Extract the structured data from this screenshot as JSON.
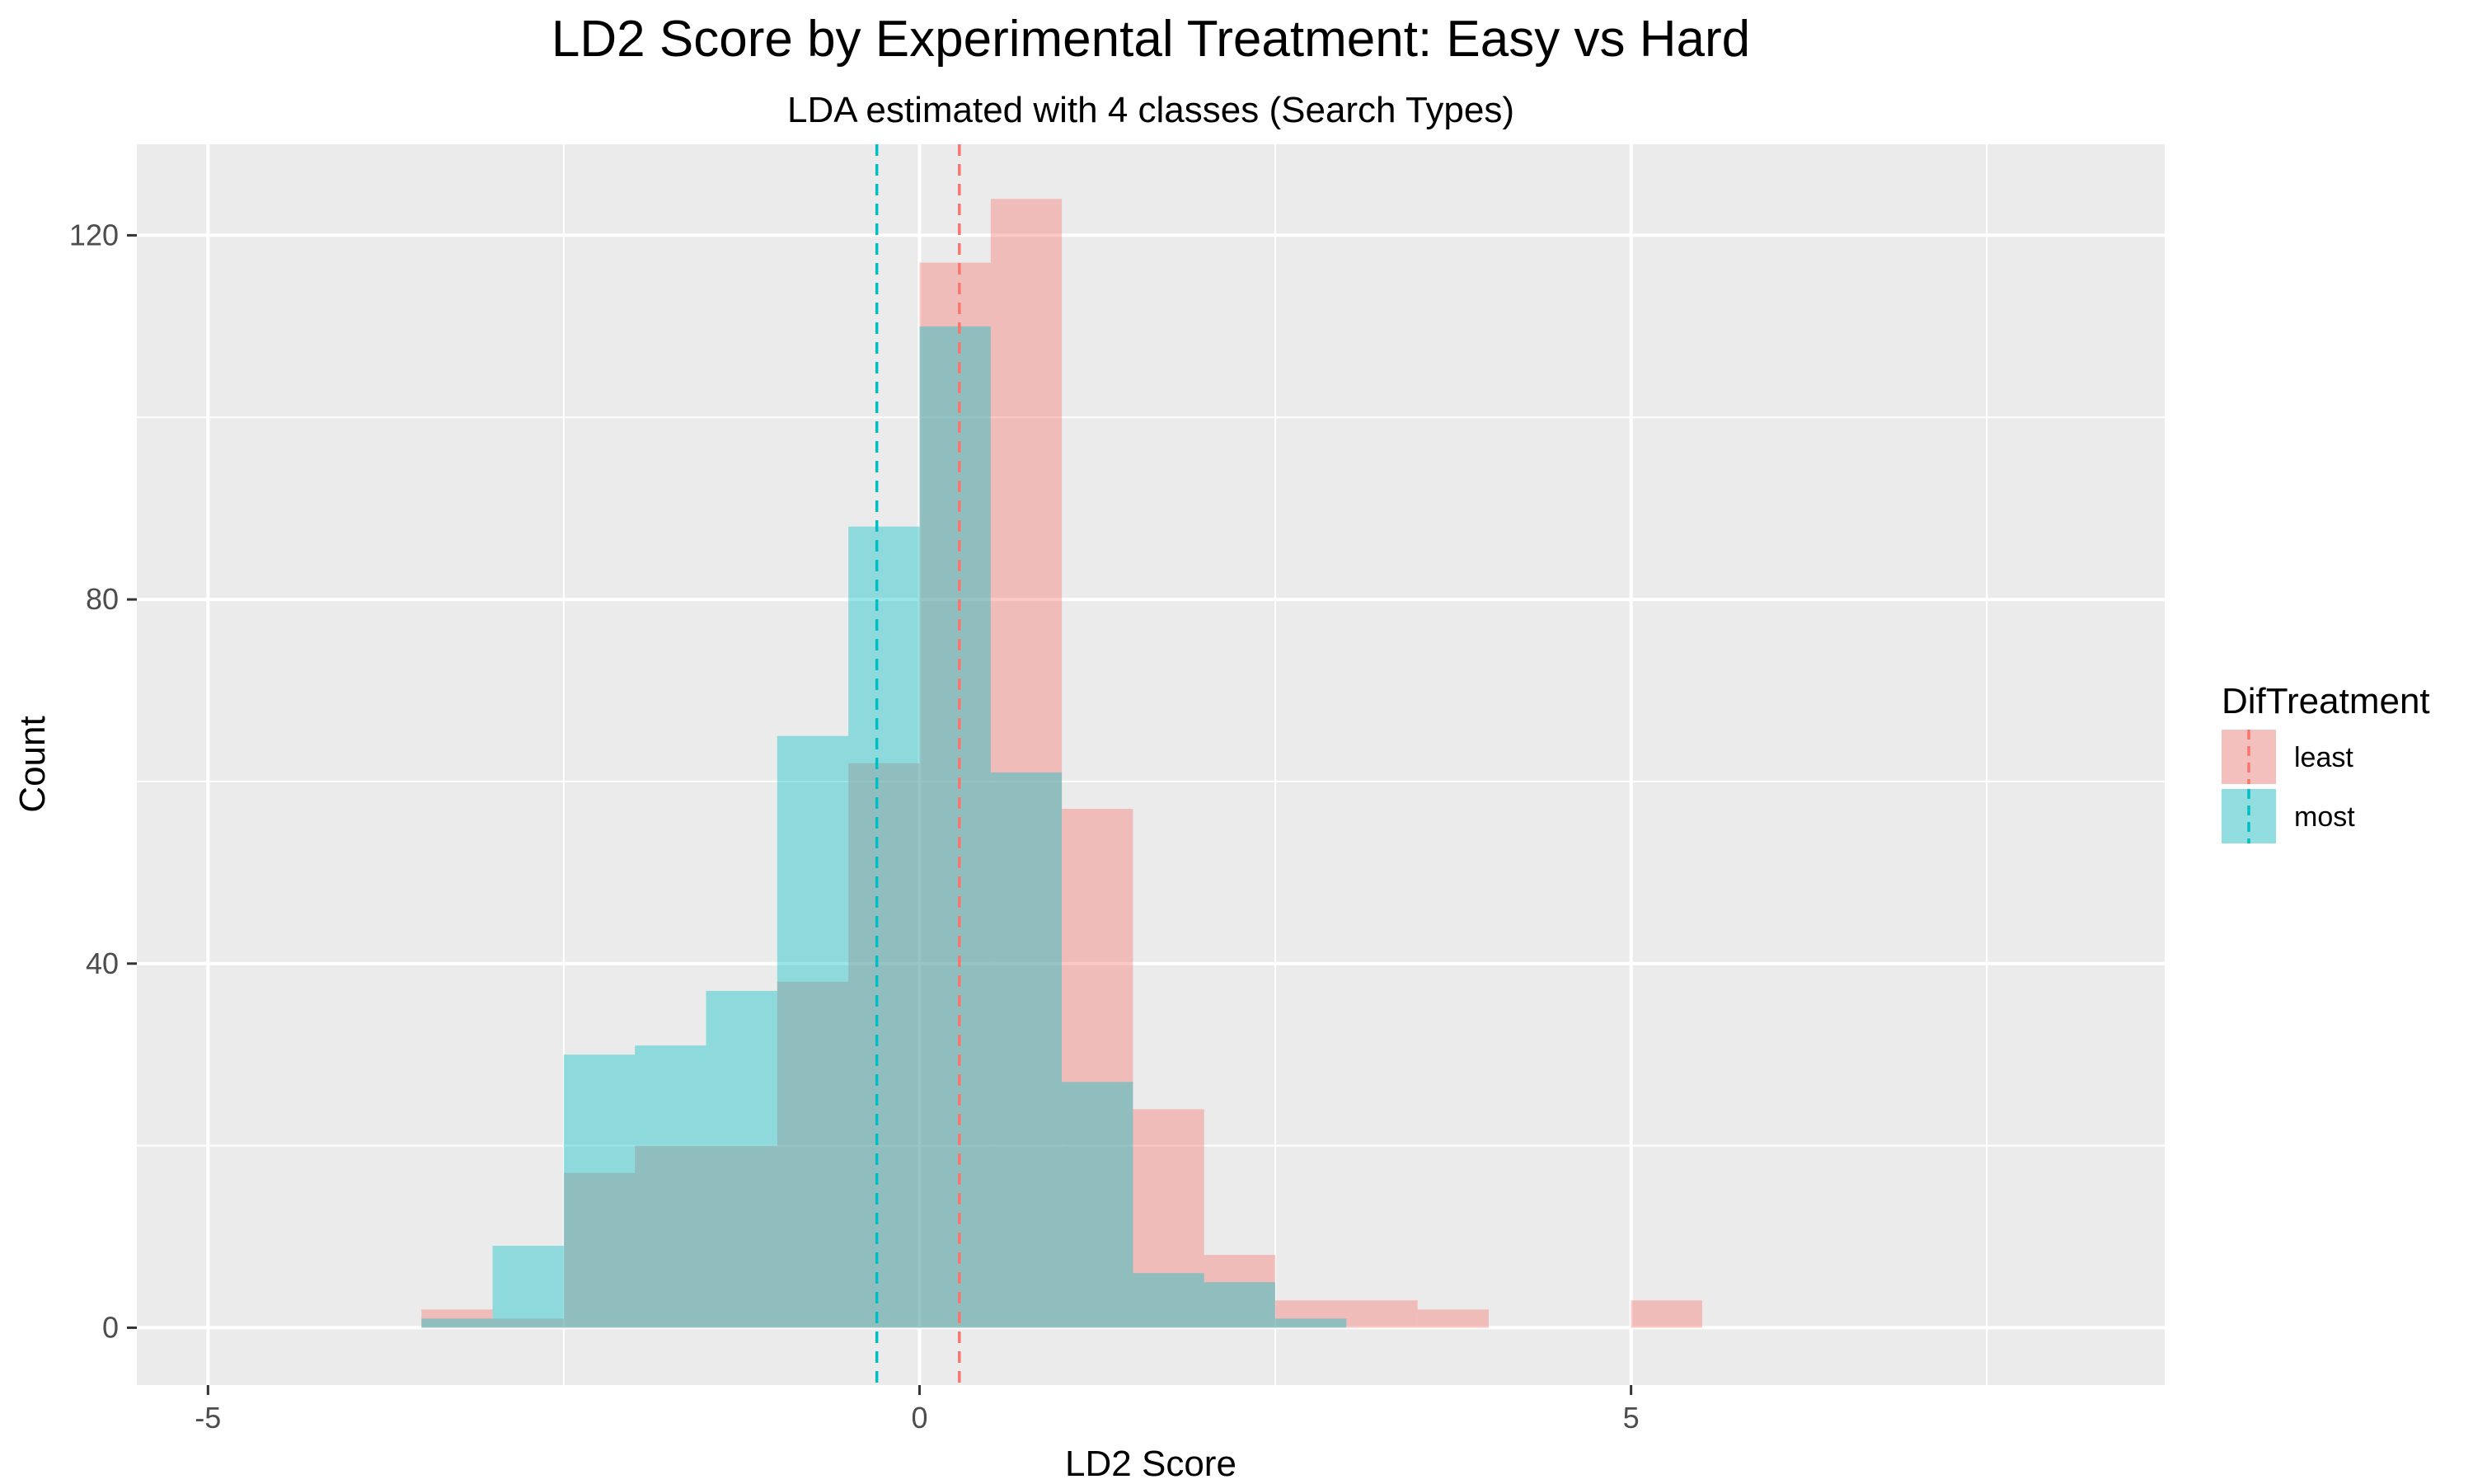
{
  "chart_data": {
    "type": "histogram",
    "title": "LD2 Score by Experimental Treatment: Easy vs Hard",
    "subtitle": "LDA estimated with 4 classes (Search Types)",
    "xlabel": "LD2 Score",
    "ylabel": "Count",
    "xlim": [
      -5.5,
      8.75
    ],
    "ylim": [
      -6.3,
      130
    ],
    "x_ticks": [
      -5,
      0,
      5
    ],
    "y_ticks": [
      0,
      40,
      80,
      120
    ],
    "binwidth": 0.5,
    "grid": true,
    "legend": {
      "title": "DifTreatment",
      "position": "right"
    },
    "series": [
      {
        "name": "least",
        "color": "#F8766D",
        "mean_line": 0.28,
        "bins": [
          {
            "x0": -3.5,
            "count": 2
          },
          {
            "x0": -3.0,
            "count": 1
          },
          {
            "x0": -2.5,
            "count": 17
          },
          {
            "x0": -2.0,
            "count": 20
          },
          {
            "x0": -1.5,
            "count": 20
          },
          {
            "x0": -1.0,
            "count": 38
          },
          {
            "x0": -0.5,
            "count": 62
          },
          {
            "x0": 0.0,
            "count": 117
          },
          {
            "x0": 0.5,
            "count": 124
          },
          {
            "x0": 1.0,
            "count": 57
          },
          {
            "x0": 1.5,
            "count": 24
          },
          {
            "x0": 2.0,
            "count": 8
          },
          {
            "x0": 2.5,
            "count": 3
          },
          {
            "x0": 3.0,
            "count": 3
          },
          {
            "x0": 3.5,
            "count": 2
          },
          {
            "x0": 5.0,
            "count": 3
          }
        ]
      },
      {
        "name": "most",
        "color": "#00BFC4",
        "mean_line": -0.3,
        "bins": [
          {
            "x0": -3.5,
            "count": 1
          },
          {
            "x0": -3.0,
            "count": 9
          },
          {
            "x0": -2.5,
            "count": 30
          },
          {
            "x0": -2.0,
            "count": 31
          },
          {
            "x0": -1.5,
            "count": 37
          },
          {
            "x0": -1.0,
            "count": 65
          },
          {
            "x0": -0.5,
            "count": 88
          },
          {
            "x0": 0.0,
            "count": 110
          },
          {
            "x0": 0.5,
            "count": 61
          },
          {
            "x0": 1.0,
            "count": 27
          },
          {
            "x0": 1.5,
            "count": 6
          },
          {
            "x0": 2.0,
            "count": 5
          },
          {
            "x0": 2.5,
            "count": 1
          }
        ]
      }
    ]
  }
}
